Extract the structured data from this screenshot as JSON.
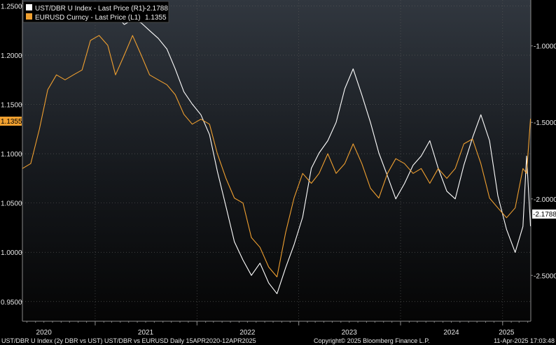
{
  "chart_data": {
    "type": "line",
    "title": "",
    "x_range": [
      "2020-04-15",
      "2025-04-12"
    ],
    "x_ticks": [
      {
        "label": "2020",
        "date": "2020-07-01"
      },
      {
        "label": "2021",
        "date": "2021-07-01"
      },
      {
        "label": "2022",
        "date": "2022-07-01"
      },
      {
        "label": "2023",
        "date": "2023-07-01"
      },
      {
        "label": "2024",
        "date": "2024-07-01"
      },
      {
        "label": "2025",
        "date": "2025-01-15"
      }
    ],
    "left_axis": {
      "series": "EURUSD Curncy",
      "range": [
        0.93,
        1.256
      ],
      "ticks": [
        "0.9500",
        "1.0000",
        "1.0500",
        "1.1000",
        "1.1500",
        "1.2000",
        "1.2500"
      ],
      "last_value_label": "1.1355",
      "last_value": 1.1355
    },
    "right_axis": {
      "series": "UST/DBR U Index",
      "range": [
        -0.7,
        -2.8
      ],
      "ticks": [
        "-1.0000",
        "-1.5000",
        "-2.0000",
        "-2.5000"
      ],
      "last_value_label": "-2.1788",
      "last_value": -2.1788
    },
    "legend": {
      "placement": "top-left",
      "entries": [
        {
          "text": "UST/DBR U Index - Last Price (R1)",
          "value": "-2.1788",
          "color": "#ffffff"
        },
        {
          "text": "EURUSD Curncy - Last Price (L1)",
          "value": "1.1355",
          "color": "#f0a030"
        }
      ]
    },
    "series": [
      {
        "name": "UST/DBR U Index",
        "axis": "right",
        "color": "#ffffff",
        "points": [
          [
            "2020-04-15",
            -0.72
          ],
          [
            "2020-05-15",
            -0.78
          ],
          [
            "2020-06-15",
            -0.75
          ],
          [
            "2020-07-15",
            -0.8
          ],
          [
            "2020-08-15",
            -0.78
          ],
          [
            "2020-09-15",
            -0.8
          ],
          [
            "2020-10-15",
            -0.76
          ],
          [
            "2020-11-15",
            -0.82
          ],
          [
            "2020-12-15",
            -0.8
          ],
          [
            "2021-01-15",
            -0.78
          ],
          [
            "2021-02-15",
            -0.82
          ],
          [
            "2021-03-15",
            -0.8
          ],
          [
            "2021-04-15",
            -0.86
          ],
          [
            "2021-05-15",
            -0.83
          ],
          [
            "2021-06-15",
            -0.85
          ],
          [
            "2021-07-15",
            -0.9
          ],
          [
            "2021-08-15",
            -0.95
          ],
          [
            "2021-09-15",
            -1.02
          ],
          [
            "2021-10-15",
            -1.15
          ],
          [
            "2021-11-15",
            -1.3
          ],
          [
            "2021-12-15",
            -1.38
          ],
          [
            "2022-01-15",
            -1.45
          ],
          [
            "2022-02-15",
            -1.58
          ],
          [
            "2022-03-15",
            -1.82
          ],
          [
            "2022-04-15",
            -2.05
          ],
          [
            "2022-05-15",
            -2.28
          ],
          [
            "2022-06-15",
            -2.4
          ],
          [
            "2022-07-15",
            -2.5
          ],
          [
            "2022-08-15",
            -2.42
          ],
          [
            "2022-09-15",
            -2.55
          ],
          [
            "2022-10-15",
            -2.62
          ],
          [
            "2022-11-15",
            -2.45
          ],
          [
            "2022-12-15",
            -2.3
          ],
          [
            "2023-01-15",
            -2.12
          ],
          [
            "2023-02-15",
            -1.8
          ],
          [
            "2023-03-15",
            -1.7
          ],
          [
            "2023-04-15",
            -1.62
          ],
          [
            "2023-05-15",
            -1.5
          ],
          [
            "2023-06-15",
            -1.28
          ],
          [
            "2023-07-15",
            -1.15
          ],
          [
            "2023-08-15",
            -1.32
          ],
          [
            "2023-09-15",
            -1.5
          ],
          [
            "2023-10-15",
            -1.7
          ],
          [
            "2023-11-15",
            -1.85
          ],
          [
            "2023-12-15",
            -2.0
          ],
          [
            "2024-01-15",
            -1.9
          ],
          [
            "2024-02-15",
            -1.78
          ],
          [
            "2024-03-15",
            -1.72
          ],
          [
            "2024-04-15",
            -1.62
          ],
          [
            "2024-05-15",
            -1.8
          ],
          [
            "2024-06-15",
            -1.95
          ],
          [
            "2024-07-15",
            -2.0
          ],
          [
            "2024-08-15",
            -1.78
          ],
          [
            "2024-09-15",
            -1.6
          ],
          [
            "2024-10-15",
            -1.45
          ],
          [
            "2024-11-15",
            -1.62
          ],
          [
            "2024-12-15",
            -1.98
          ],
          [
            "2025-01-15",
            -2.2
          ],
          [
            "2025-02-15",
            -2.35
          ],
          [
            "2025-03-15",
            -2.18
          ],
          [
            "2025-03-28",
            -1.72
          ],
          [
            "2025-04-11",
            -2.1788
          ]
        ]
      },
      {
        "name": "EURUSD Curncy",
        "axis": "left",
        "color": "#f0a030",
        "points": [
          [
            "2020-04-15",
            1.085
          ],
          [
            "2020-05-15",
            1.09
          ],
          [
            "2020-06-15",
            1.125
          ],
          [
            "2020-07-15",
            1.165
          ],
          [
            "2020-08-15",
            1.18
          ],
          [
            "2020-09-15",
            1.175
          ],
          [
            "2020-10-15",
            1.18
          ],
          [
            "2020-11-15",
            1.185
          ],
          [
            "2020-12-15",
            1.215
          ],
          [
            "2021-01-15",
            1.22
          ],
          [
            "2021-02-15",
            1.21
          ],
          [
            "2021-03-15",
            1.18
          ],
          [
            "2021-04-15",
            1.2
          ],
          [
            "2021-05-15",
            1.22
          ],
          [
            "2021-06-15",
            1.2
          ],
          [
            "2021-07-15",
            1.18
          ],
          [
            "2021-08-15",
            1.175
          ],
          [
            "2021-09-15",
            1.17
          ],
          [
            "2021-10-15",
            1.16
          ],
          [
            "2021-11-15",
            1.14
          ],
          [
            "2021-12-15",
            1.13
          ],
          [
            "2022-01-15",
            1.135
          ],
          [
            "2022-02-15",
            1.13
          ],
          [
            "2022-03-15",
            1.1
          ],
          [
            "2022-04-15",
            1.075
          ],
          [
            "2022-05-15",
            1.055
          ],
          [
            "2022-06-15",
            1.05
          ],
          [
            "2022-07-15",
            1.015
          ],
          [
            "2022-08-15",
            1.005
          ],
          [
            "2022-09-15",
            0.985
          ],
          [
            "2022-10-15",
            0.975
          ],
          [
            "2022-11-15",
            1.02
          ],
          [
            "2022-12-15",
            1.055
          ],
          [
            "2023-01-15",
            1.08
          ],
          [
            "2023-02-15",
            1.07
          ],
          [
            "2023-03-15",
            1.08
          ],
          [
            "2023-04-15",
            1.1
          ],
          [
            "2023-05-15",
            1.08
          ],
          [
            "2023-06-15",
            1.09
          ],
          [
            "2023-07-15",
            1.11
          ],
          [
            "2023-08-15",
            1.09
          ],
          [
            "2023-09-15",
            1.065
          ],
          [
            "2023-10-15",
            1.055
          ],
          [
            "2023-11-15",
            1.08
          ],
          [
            "2023-12-15",
            1.095
          ],
          [
            "2024-01-15",
            1.09
          ],
          [
            "2024-02-15",
            1.08
          ],
          [
            "2024-03-15",
            1.085
          ],
          [
            "2024-04-15",
            1.07
          ],
          [
            "2024-05-15",
            1.085
          ],
          [
            "2024-06-15",
            1.075
          ],
          [
            "2024-07-15",
            1.085
          ],
          [
            "2024-08-15",
            1.11
          ],
          [
            "2024-09-15",
            1.115
          ],
          [
            "2024-10-15",
            1.09
          ],
          [
            "2024-11-15",
            1.055
          ],
          [
            "2024-12-15",
            1.045
          ],
          [
            "2025-01-15",
            1.035
          ],
          [
            "2025-02-15",
            1.045
          ],
          [
            "2025-03-15",
            1.085
          ],
          [
            "2025-03-28",
            1.08
          ],
          [
            "2025-04-11",
            1.1355
          ]
        ]
      }
    ],
    "footer": {
      "left": "UST/DBR U Index (2y DBR vs UST) UST/DBR vs EURUSD  Daily 15APR2020-12APR2025",
      "center": "Copyright© 2025 Bloomberg Finance L.P.",
      "right": "11-Apr-2025 17:03:48"
    },
    "grid": "on",
    "colors": {
      "background": "#000000",
      "grid": "#555555",
      "white_series": "#ffffff",
      "orange_series": "#f0a030"
    }
  }
}
